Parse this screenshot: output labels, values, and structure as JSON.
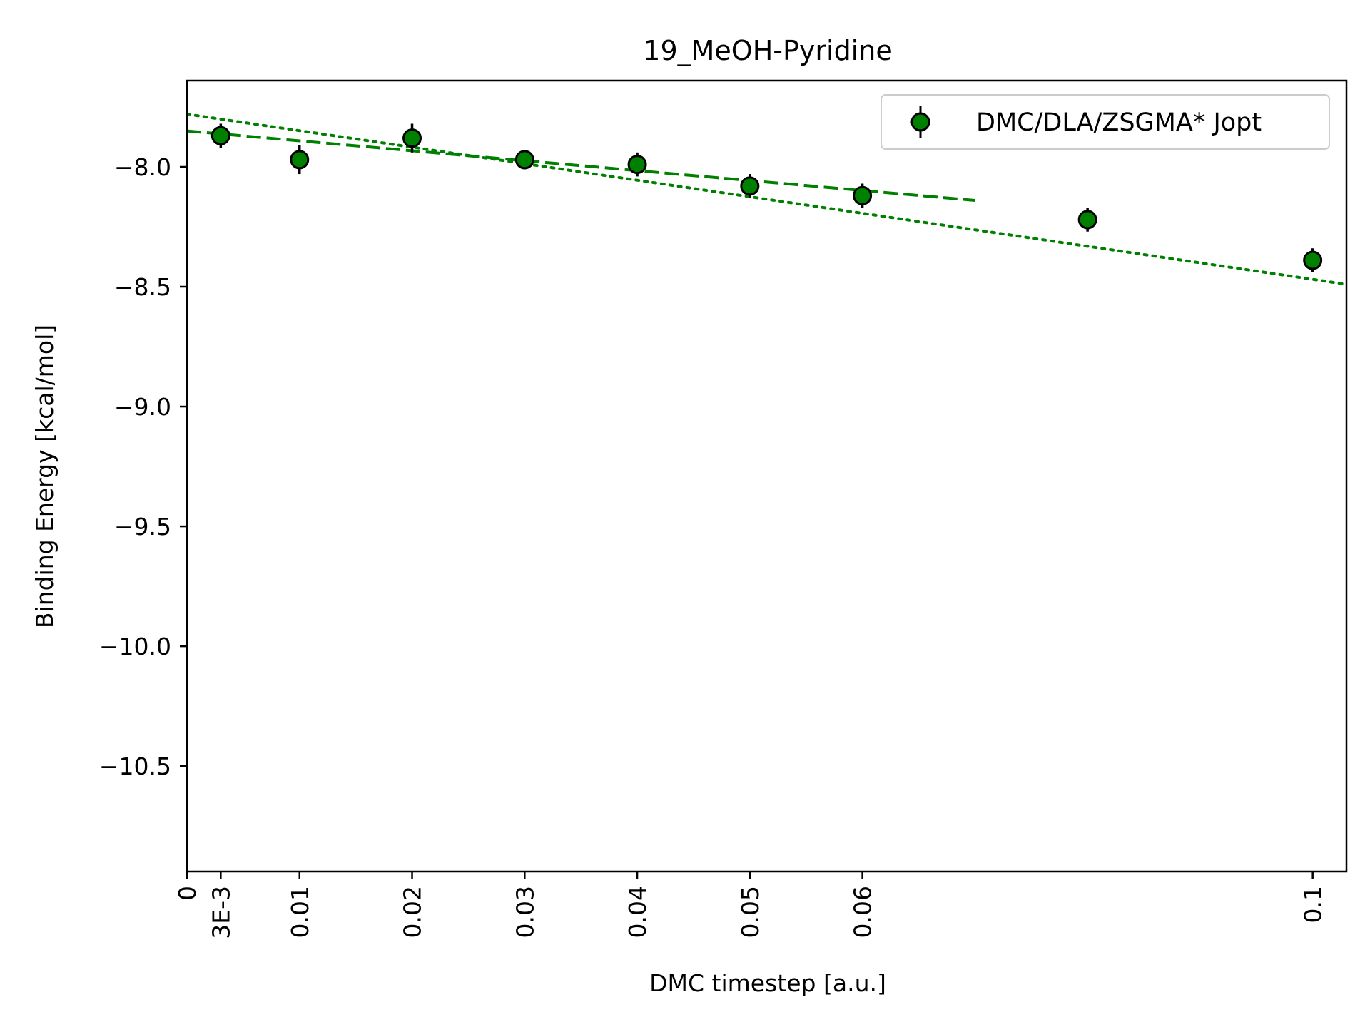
{
  "chart_data": {
    "type": "scatter",
    "title": "19_MeOH-Pyridine",
    "xlabel": "DMC timestep [a.u.]",
    "ylabel": "Binding Energy [kcal/mol]",
    "xlim": [
      0,
      0.103
    ],
    "ylim": [
      -10.94,
      -7.64
    ],
    "x_ticks": [
      {
        "value": 0,
        "label": "0"
      },
      {
        "value": 0.003,
        "label": "3E-3"
      },
      {
        "value": 0.01,
        "label": "0.01"
      },
      {
        "value": 0.02,
        "label": "0.02"
      },
      {
        "value": 0.03,
        "label": "0.03"
      },
      {
        "value": 0.04,
        "label": "0.04"
      },
      {
        "value": 0.05,
        "label": "0.05"
      },
      {
        "value": 0.06,
        "label": "0.06"
      },
      {
        "value": 0.1,
        "label": "0.1"
      }
    ],
    "y_ticks": [
      {
        "value": -8.0,
        "label": "−8.0"
      },
      {
        "value": -8.5,
        "label": "−8.5"
      },
      {
        "value": -9.0,
        "label": "−9.0"
      },
      {
        "value": -9.5,
        "label": "−9.5"
      },
      {
        "value": -10.0,
        "label": "−10.0"
      },
      {
        "value": -10.5,
        "label": "−10.5"
      }
    ],
    "series": [
      {
        "name": "DMC/DLA/ZSGMA* Jopt",
        "color": "#008000",
        "x": [
          0.003,
          0.01,
          0.02,
          0.03,
          0.04,
          0.05,
          0.06,
          0.08,
          0.1
        ],
        "y": [
          -7.87,
          -7.97,
          -7.88,
          -7.97,
          -7.99,
          -8.08,
          -8.12,
          -8.22,
          -8.39
        ],
        "yerr": [
          0.05,
          0.06,
          0.06,
          0.04,
          0.05,
          0.05,
          0.05,
          0.05,
          0.05
        ]
      }
    ],
    "fits": [
      {
        "style": "dashed",
        "color": "#008000",
        "x": [
          0,
          0.07
        ],
        "y": [
          -7.85,
          -8.14
        ]
      },
      {
        "style": "dotted",
        "color": "#008000",
        "x": [
          0,
          0.103
        ],
        "y": [
          -7.78,
          -8.49
        ]
      }
    ],
    "legend_position": "top-right",
    "grid": false
  }
}
